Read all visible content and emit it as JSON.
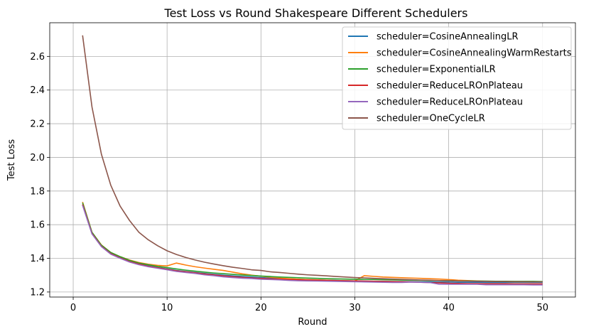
{
  "chart_data": {
    "type": "line",
    "title": "Test Loss vs Round Shakespeare Different Schedulers",
    "xlabel": "Round",
    "ylabel": "Test Loss",
    "xlim": [
      -2.5,
      53.5
    ],
    "ylim": [
      1.17,
      2.8
    ],
    "xticks": [
      0,
      10,
      20,
      30,
      40,
      50
    ],
    "yticks": [
      1.2,
      1.4,
      1.6,
      1.8,
      2.0,
      2.2,
      2.4,
      2.6
    ],
    "grid": true,
    "legend_position": "top-right",
    "x": [
      1,
      2,
      3,
      4,
      5,
      6,
      7,
      8,
      9,
      10,
      11,
      12,
      13,
      14,
      15,
      16,
      17,
      18,
      19,
      20,
      21,
      22,
      23,
      24,
      25,
      26,
      27,
      28,
      29,
      30,
      31,
      32,
      33,
      34,
      35,
      36,
      37,
      38,
      39,
      40,
      41,
      42,
      43,
      44,
      45,
      46,
      47,
      48,
      49,
      50
    ],
    "series": [
      {
        "name": "scheduler=CosineAnnealingLR",
        "color": "#1f77b4",
        "values": [
          1.72,
          1.55,
          1.475,
          1.43,
          1.405,
          1.382,
          1.367,
          1.355,
          1.345,
          1.337,
          1.328,
          1.322,
          1.316,
          1.31,
          1.305,
          1.3,
          1.296,
          1.292,
          1.289,
          1.286,
          1.283,
          1.28,
          1.278,
          1.276,
          1.274,
          1.272,
          1.27,
          1.269,
          1.267,
          1.266,
          1.265,
          1.264,
          1.263,
          1.262,
          1.262,
          1.261,
          1.26,
          1.26,
          1.259,
          1.259,
          1.258,
          1.258,
          1.258,
          1.257,
          1.257,
          1.257,
          1.257,
          1.257,
          1.257,
          1.257
        ]
      },
      {
        "name": "scheduler=CosineAnnealingWarmRestarts",
        "color": "#ff7f0e",
        "values": [
          1.735,
          1.555,
          1.48,
          1.435,
          1.41,
          1.39,
          1.375,
          1.365,
          1.358,
          1.355,
          1.372,
          1.36,
          1.35,
          1.342,
          1.335,
          1.328,
          1.318,
          1.308,
          1.3,
          1.294,
          1.288,
          1.283,
          1.279,
          1.276,
          1.274,
          1.272,
          1.27,
          1.268,
          1.267,
          1.266,
          1.297,
          1.293,
          1.289,
          1.287,
          1.285,
          1.283,
          1.281,
          1.279,
          1.277,
          1.274,
          1.27,
          1.268,
          1.266,
          1.264,
          1.263,
          1.262,
          1.261,
          1.261,
          1.26,
          1.26
        ]
      },
      {
        "name": "scheduler=ExponentialLR",
        "color": "#2ca02c",
        "values": [
          1.73,
          1.555,
          1.478,
          1.435,
          1.41,
          1.388,
          1.372,
          1.362,
          1.352,
          1.345,
          1.337,
          1.33,
          1.324,
          1.318,
          1.313,
          1.309,
          1.305,
          1.301,
          1.298,
          1.295,
          1.292,
          1.289,
          1.287,
          1.285,
          1.283,
          1.281,
          1.279,
          1.278,
          1.277,
          1.276,
          1.275,
          1.274,
          1.273,
          1.272,
          1.271,
          1.27,
          1.269,
          1.268,
          1.268,
          1.267,
          1.266,
          1.266,
          1.265,
          1.265,
          1.264,
          1.264,
          1.263,
          1.263,
          1.263,
          1.262
        ]
      },
      {
        "name": "scheduler=ReduceLROnPlateau",
        "color": "#d62728",
        "values": [
          1.72,
          1.548,
          1.472,
          1.428,
          1.403,
          1.381,
          1.366,
          1.353,
          1.344,
          1.335,
          1.326,
          1.32,
          1.314,
          1.307,
          1.302,
          1.296,
          1.291,
          1.287,
          1.284,
          1.281,
          1.278,
          1.276,
          1.274,
          1.272,
          1.271,
          1.27,
          1.269,
          1.268,
          1.267,
          1.266,
          1.265,
          1.264,
          1.263,
          1.262,
          1.261,
          1.26,
          1.258,
          1.256,
          1.254,
          1.252,
          1.251,
          1.25,
          1.25,
          1.249,
          1.249,
          1.249,
          1.248,
          1.248,
          1.248,
          1.248
        ]
      },
      {
        "name": "scheduler=ReduceLROnPlateau",
        "color": "#9467bd",
        "values": [
          1.715,
          1.545,
          1.47,
          1.425,
          1.4,
          1.378,
          1.362,
          1.35,
          1.341,
          1.332,
          1.322,
          1.316,
          1.31,
          1.302,
          1.297,
          1.29,
          1.286,
          1.282,
          1.28,
          1.276,
          1.274,
          1.272,
          1.269,
          1.267,
          1.266,
          1.265,
          1.264,
          1.263,
          1.262,
          1.261,
          1.26,
          1.259,
          1.258,
          1.257,
          1.257,
          1.259,
          1.258,
          1.256,
          1.246,
          1.246,
          1.246,
          1.246,
          1.246,
          1.243,
          1.243,
          1.243,
          1.243,
          1.243,
          1.242,
          1.242
        ]
      },
      {
        "name": "scheduler=OneCycleLR",
        "color": "#8c564b",
        "values": [
          2.725,
          2.3,
          2.02,
          1.835,
          1.71,
          1.625,
          1.555,
          1.51,
          1.475,
          1.445,
          1.423,
          1.405,
          1.39,
          1.377,
          1.366,
          1.356,
          1.347,
          1.34,
          1.332,
          1.328,
          1.32,
          1.316,
          1.311,
          1.306,
          1.302,
          1.299,
          1.296,
          1.292,
          1.289,
          1.286,
          1.284,
          1.281,
          1.279,
          1.277,
          1.275,
          1.273,
          1.271,
          1.27,
          1.268,
          1.267,
          1.266,
          1.265,
          1.264,
          1.263,
          1.262,
          1.262,
          1.261,
          1.261,
          1.26,
          1.26
        ]
      }
    ]
  }
}
